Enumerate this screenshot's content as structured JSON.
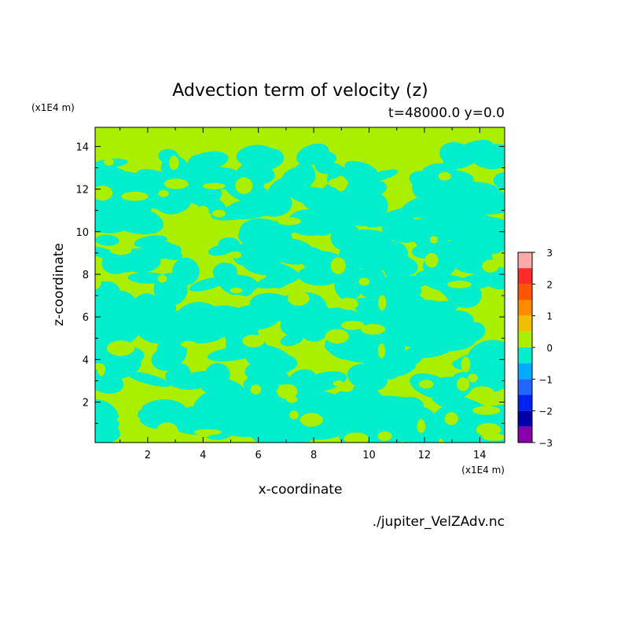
{
  "chart_data": {
    "type": "heatmap",
    "title": "Advection term of velocity (z)",
    "subtitle": "t=48000.0 y=0.0",
    "xlabel": "x-coordinate",
    "ylabel": "z-coordinate",
    "x_unit": "(x1E4 m)",
    "y_unit": "(x1E4 m)",
    "xlim": [
      0.1,
      14.9
    ],
    "ylim": [
      0.1,
      14.9
    ],
    "x_ticks": [
      2,
      4,
      6,
      8,
      10,
      12,
      14
    ],
    "y_ticks": [
      2,
      4,
      6,
      8,
      10,
      12,
      14
    ],
    "source": "./jupiter_VelZAdv.nc",
    "colorbar": {
      "min": -3,
      "max": 3,
      "labels": [
        3,
        2,
        1,
        0,
        -1,
        -2,
        -3
      ],
      "levels": [
        {
          "from": 2.5,
          "to": 3.0,
          "color": "#ffaaaa"
        },
        {
          "from": 2.0,
          "to": 2.5,
          "color": "#ff2a2a"
        },
        {
          "from": 1.5,
          "to": 2.0,
          "color": "#ff5500"
        },
        {
          "from": 1.0,
          "to": 1.5,
          "color": "#ff8c00"
        },
        {
          "from": 0.5,
          "to": 1.0,
          "color": "#f0c000"
        },
        {
          "from": 0.0,
          "to": 0.5,
          "color": "#aaee00"
        },
        {
          "from": -0.5,
          "to": 0.0,
          "color": "#00eecc"
        },
        {
          "from": -1.0,
          "to": -0.5,
          "color": "#00aaff"
        },
        {
          "from": -1.5,
          "to": -1.0,
          "color": "#2266ff"
        },
        {
          "from": -2.0,
          "to": -1.5,
          "color": "#0022ee"
        },
        {
          "from": -2.5,
          "to": -2.0,
          "color": "#0000aa"
        },
        {
          "from": -3.0,
          "to": -2.5,
          "color": "#8800aa"
        }
      ]
    },
    "field_colors": {
      "positive": "#aaee00",
      "negative": "#00eecc"
    }
  }
}
